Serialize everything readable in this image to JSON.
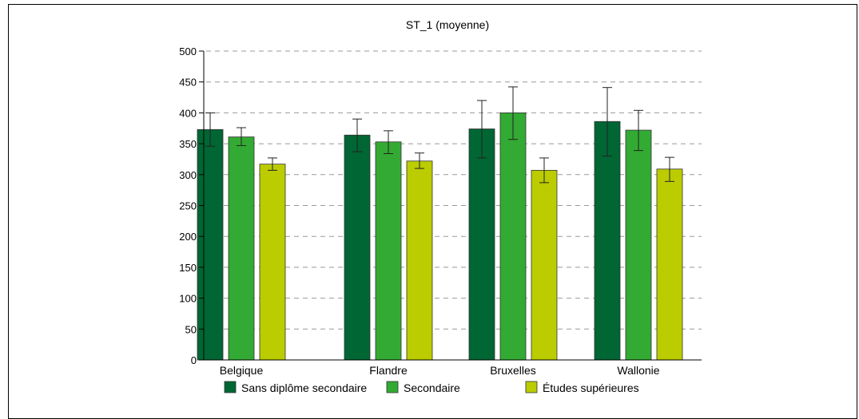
{
  "chart_data": {
    "type": "bar",
    "title": "ST_1 (moyenne)",
    "xlabel": "",
    "ylabel": "",
    "ylim": [
      0,
      500
    ],
    "yticks": [
      0,
      50,
      100,
      150,
      200,
      250,
      300,
      350,
      400,
      450,
      500
    ],
    "grid": true,
    "legend_position": "bottom",
    "categories": [
      "Belgique",
      "Flandre",
      "Bruxelles",
      "Wallonie"
    ],
    "series": [
      {
        "name": "Sans diplôme secondaire",
        "color": "#006633",
        "values": [
          373,
          364,
          374,
          386
        ],
        "error_low": [
          346,
          337,
          327,
          330
        ],
        "error_high": [
          400,
          390,
          420,
          441
        ]
      },
      {
        "name": "Secondaire",
        "color": "#33AA33",
        "values": [
          361,
          353,
          400,
          372
        ],
        "error_low": [
          347,
          334,
          357,
          339
        ],
        "error_high": [
          376,
          371,
          442,
          404
        ]
      },
      {
        "name": "Études supérieures",
        "color": "#BBCC00",
        "values": [
          317,
          322,
          307,
          309
        ],
        "error_low": [
          307,
          310,
          287,
          289
        ],
        "error_high": [
          327,
          335,
          327,
          328
        ]
      }
    ]
  }
}
